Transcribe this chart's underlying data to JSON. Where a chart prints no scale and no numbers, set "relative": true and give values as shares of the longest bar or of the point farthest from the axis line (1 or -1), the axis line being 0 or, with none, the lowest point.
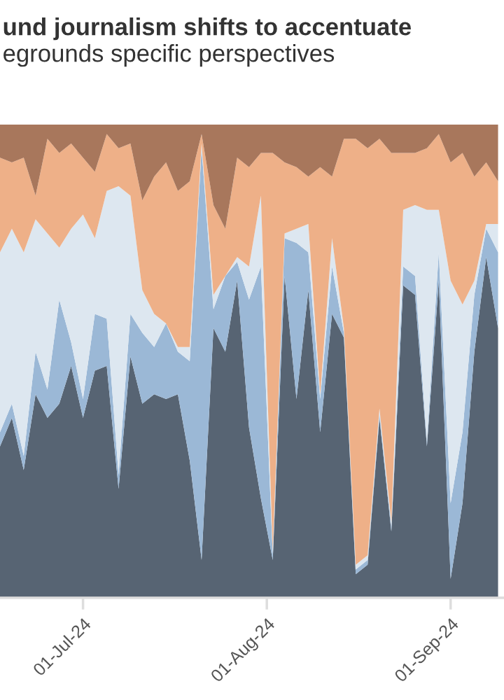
{
  "chart_data": {
    "type": "area",
    "stacked": true,
    "relative": true,
    "title": "und journalism shifts to accentuate",
    "subtitle": "egrounds specific perspectives",
    "x": [
      "2024-06-17",
      "2024-06-19",
      "2024-06-21",
      "2024-06-23",
      "2024-06-25",
      "2024-06-27",
      "2024-06-29",
      "2024-07-01",
      "2024-07-03",
      "2024-07-05",
      "2024-07-07",
      "2024-07-09",
      "2024-07-11",
      "2024-07-13",
      "2024-07-15",
      "2024-07-17",
      "2024-07-19",
      "2024-07-21",
      "2024-07-23",
      "2024-07-25",
      "2024-07-27",
      "2024-07-29",
      "2024-07-31",
      "2024-08-02",
      "2024-08-04",
      "2024-08-06",
      "2024-08-08",
      "2024-08-10",
      "2024-08-12",
      "2024-08-14",
      "2024-08-16",
      "2024-08-18",
      "2024-08-20",
      "2024-08-22",
      "2024-08-24",
      "2024-08-26",
      "2024-08-28",
      "2024-08-30",
      "2024-09-01",
      "2024-09-03",
      "2024-09-05",
      "2024-09-07",
      "2024-09-09"
    ],
    "series": [
      {
        "color": "#576473",
        "values": [
          0.32,
          0.38,
          0.27,
          0.43,
          0.38,
          0.41,
          0.49,
          0.38,
          0.48,
          0.49,
          0.23,
          0.51,
          0.41,
          0.43,
          0.42,
          0.43,
          0.29,
          0.08,
          0.57,
          0.52,
          0.67,
          0.36,
          0.21,
          0.08,
          0.68,
          0.42,
          0.65,
          0.35,
          0.6,
          0.55,
          0.05,
          0.07,
          0.38,
          0.14,
          0.66,
          0.64,
          0.32,
          0.67,
          0.04,
          0.2,
          0.52,
          0.72,
          0.57
        ]
      },
      {
        "color": "#9bb8d6",
        "values": [
          0.03,
          0.03,
          0.03,
          0.09,
          0.06,
          0.22,
          0.05,
          0.04,
          0.12,
          0.1,
          0.03,
          0.09,
          0.15,
          0.1,
          0.16,
          0.09,
          0.21,
          0.87,
          0.04,
          0.16,
          0.04,
          0.27,
          0.49,
          0.01,
          0.08,
          0.33,
          0.08,
          0.07,
          0.1,
          0.01,
          0.01,
          0.01,
          0.01,
          0.01,
          0.04,
          0.04,
          0.01,
          0.06,
          0.16,
          0.15,
          0.12,
          0.06,
          0.16
        ]
      },
      {
        "color": "#dde7f0",
        "values": [
          0.38,
          0.37,
          0.43,
          0.28,
          0.33,
          0.11,
          0.24,
          0.39,
          0.16,
          0.27,
          0.61,
          0.25,
          0.09,
          0.07,
          0.0,
          0.01,
          0.03,
          0.01,
          0.03,
          0.0,
          0.01,
          0.07,
          0.15,
          0.01,
          0.01,
          0.03,
          0.06,
          0.01,
          0.06,
          0.01,
          0.01,
          0.01,
          0.01,
          0.01,
          0.12,
          0.15,
          0.49,
          0.09,
          0.47,
          0.27,
          0.03,
          0.01,
          0.06
        ]
      },
      {
        "color": "#eeb088",
        "values": [
          0.2,
          0.14,
          0.2,
          0.05,
          0.2,
          0.2,
          0.18,
          0.12,
          0.14,
          0.12,
          0.08,
          0.11,
          0.19,
          0.29,
          0.34,
          0.33,
          0.35,
          0.02,
          0.19,
          0.1,
          0.21,
          0.21,
          0.09,
          0.84,
          0.15,
          0.13,
          0.1,
          0.48,
          0.13,
          0.4,
          0.9,
          0.86,
          0.57,
          0.78,
          0.12,
          0.11,
          0.13,
          0.16,
          0.25,
          0.32,
          0.22,
          0.13,
          0.09
        ]
      },
      {
        "color": "#a8775c",
        "values": [
          0.07,
          0.08,
          0.07,
          0.15,
          0.03,
          0.06,
          0.04,
          0.07,
          0.1,
          0.02,
          0.05,
          0.04,
          0.16,
          0.11,
          0.08,
          0.14,
          0.12,
          0.02,
          0.17,
          0.22,
          0.07,
          0.09,
          0.06,
          0.06,
          0.08,
          0.09,
          0.11,
          0.09,
          0.11,
          0.03,
          0.03,
          0.05,
          0.03,
          0.06,
          0.06,
          0.06,
          0.05,
          0.02,
          0.08,
          0.06,
          0.11,
          0.08,
          0.12
        ]
      }
    ],
    "xlim": [
      "2024-06-17",
      "2024-09-10"
    ],
    "xticks": [
      {
        "value": "2024-07-01",
        "label": "01-Jul-24"
      },
      {
        "value": "2024-08-01",
        "label": "01-Aug-24"
      },
      {
        "value": "2024-09-01",
        "label": "01-Sep-24"
      }
    ],
    "grid": false,
    "legend": false
  }
}
